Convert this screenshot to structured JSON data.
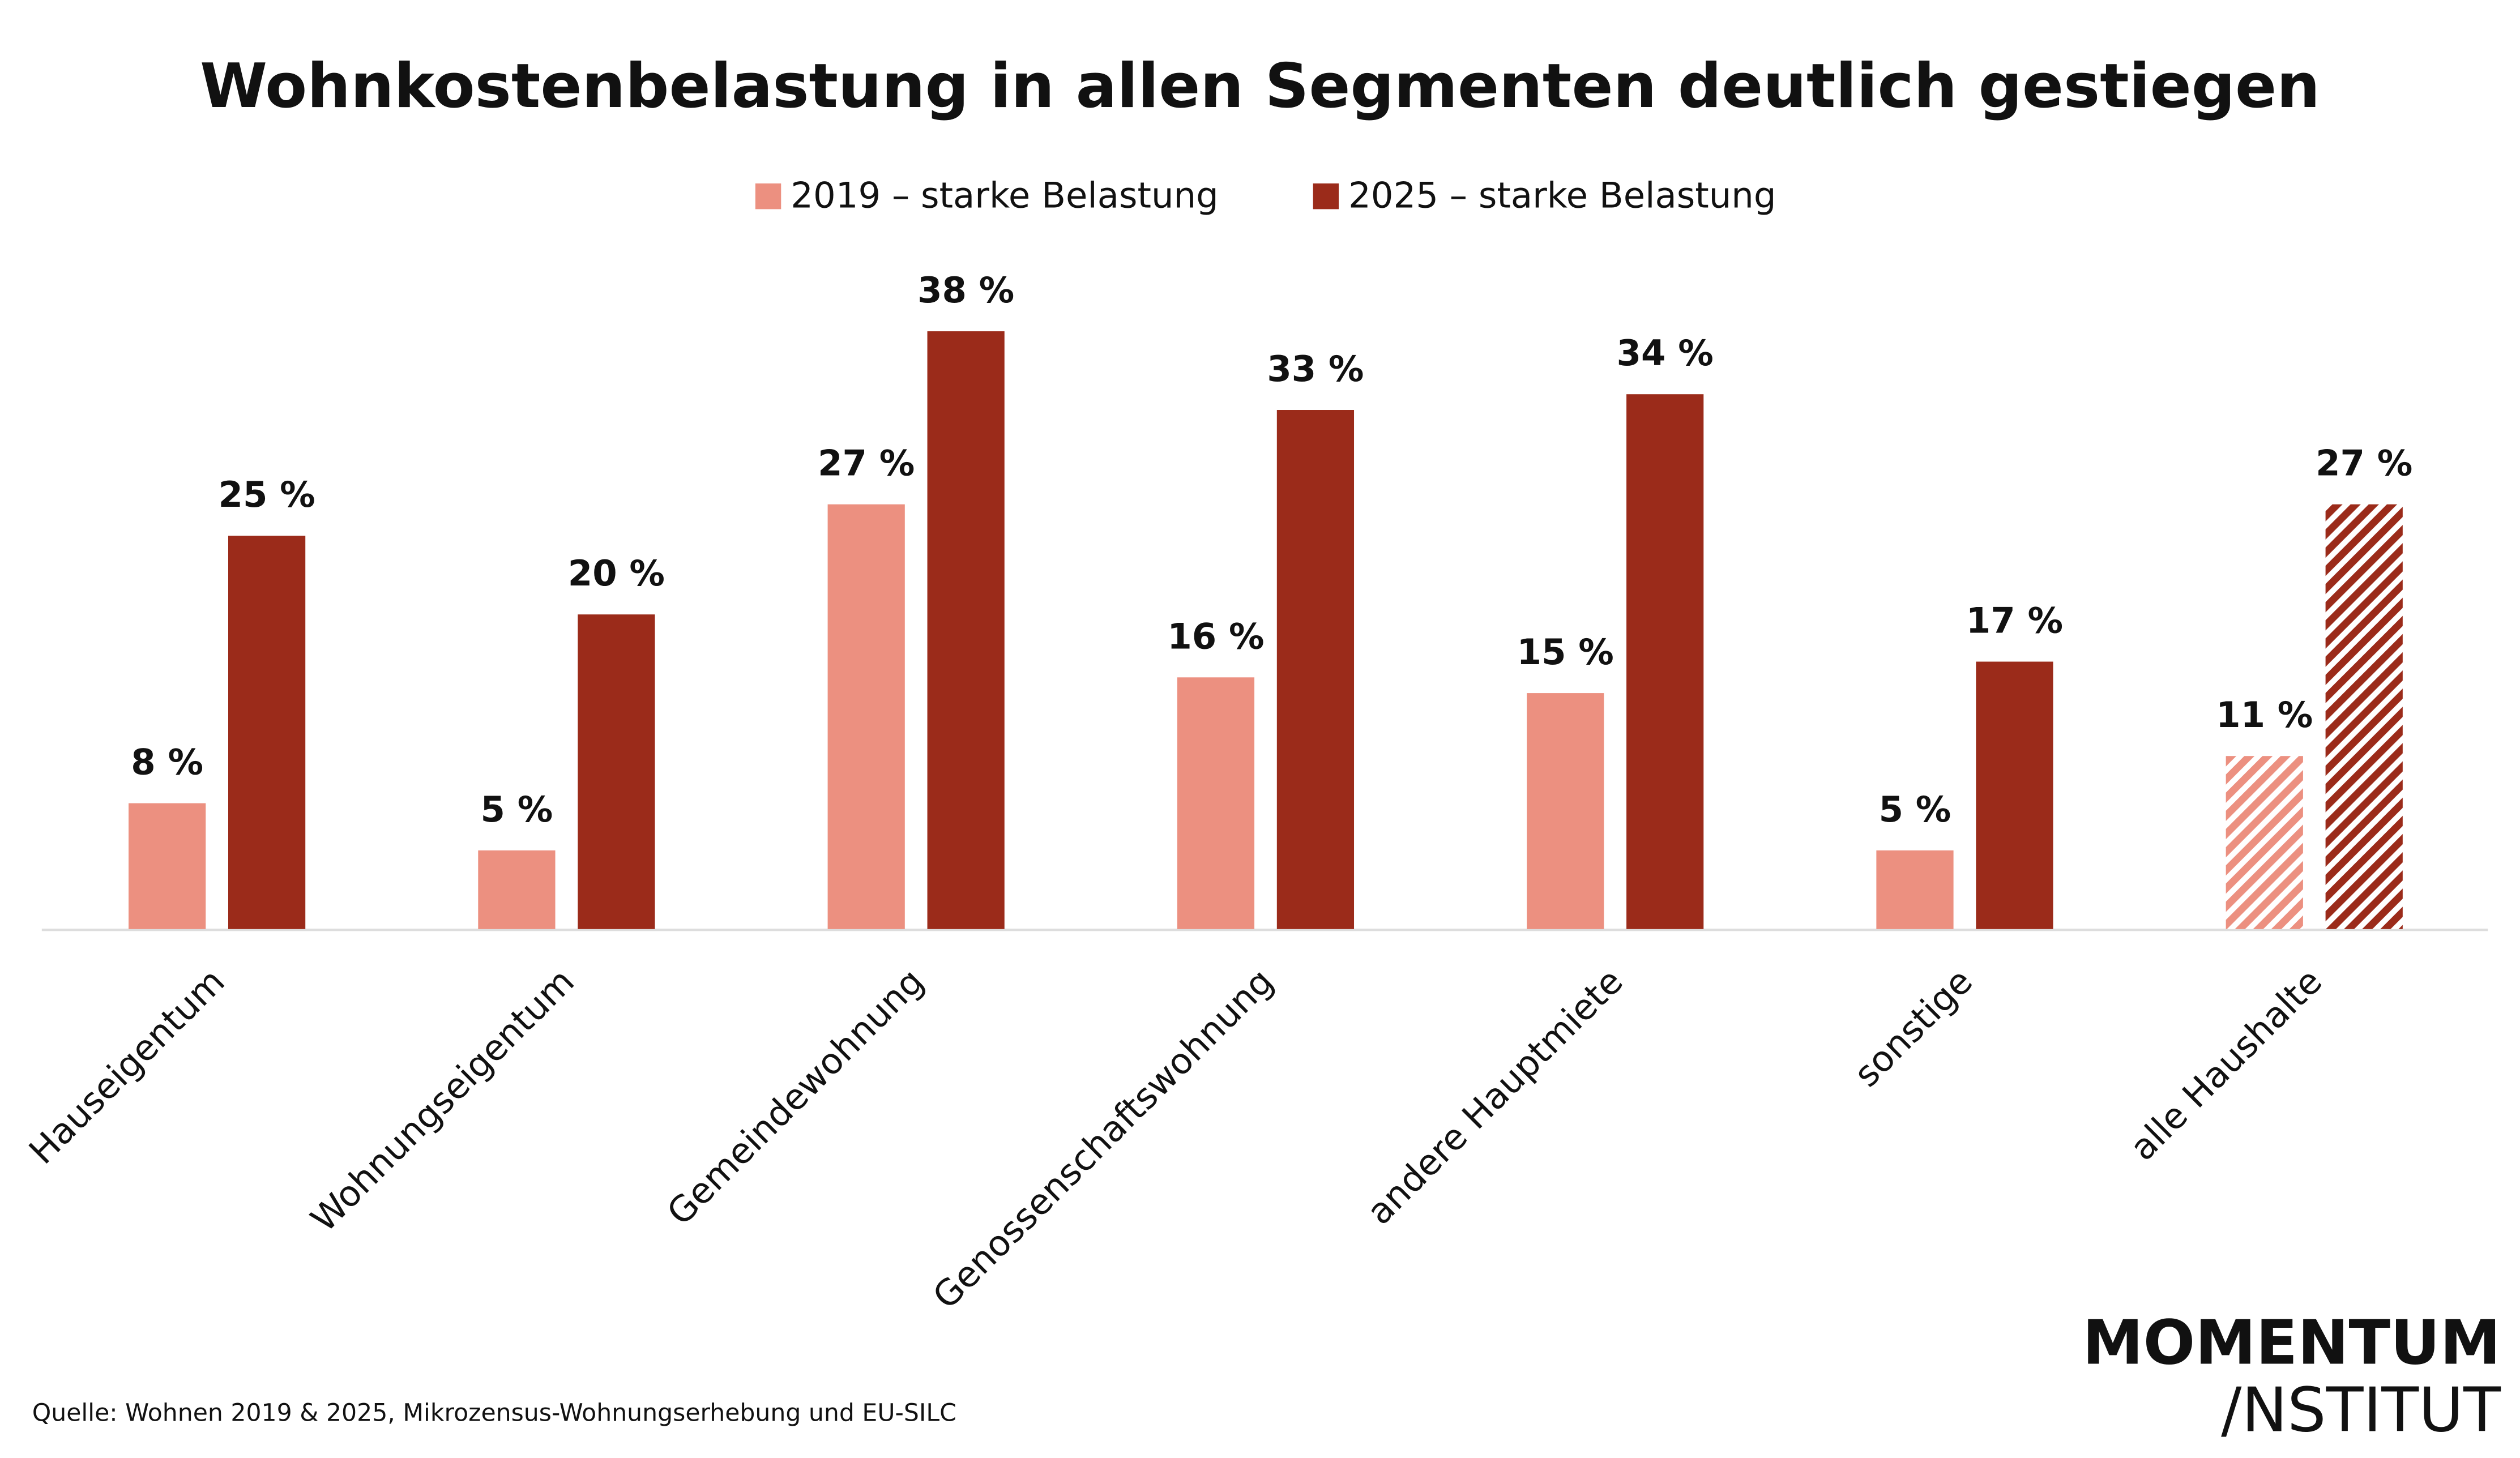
{
  "chart_data": {
    "type": "bar",
    "title": "Wohnkostenbelastung in allen Segmenten deutlich gestiegen",
    "categories": [
      "Hauseigentum",
      "Wohnungseigentum",
      "Gemeindewohnung",
      "Genossenschaftswohnung",
      "andere Hauptmiete",
      "sonstige",
      "alle Haushalte"
    ],
    "series": [
      {
        "name": "2019 – starke Belastung",
        "color": "#ec9080",
        "values": [
          8,
          5,
          27,
          16,
          15,
          5,
          11
        ],
        "value_labels": [
          "8 %",
          "5 %",
          "27 %",
          "16 %",
          "15 %",
          "5 %",
          "11 %"
        ]
      },
      {
        "name": "2025 – starke Belastung",
        "color": "#9b2b1a",
        "values": [
          25,
          20,
          38,
          33,
          34,
          17,
          27
        ],
        "value_labels": [
          "25 %",
          "20 %",
          "38 %",
          "33 %",
          "34 %",
          "17 %",
          "27 %"
        ]
      }
    ],
    "hatch_last": true,
    "legend": "top",
    "source": "Quelle: Wohnen 2019 & 2025, Mikrozensus-Wohnungserhebung und EU-SILC",
    "logo": [
      "MOMENTUM",
      "/NSTITUT"
    ]
  }
}
